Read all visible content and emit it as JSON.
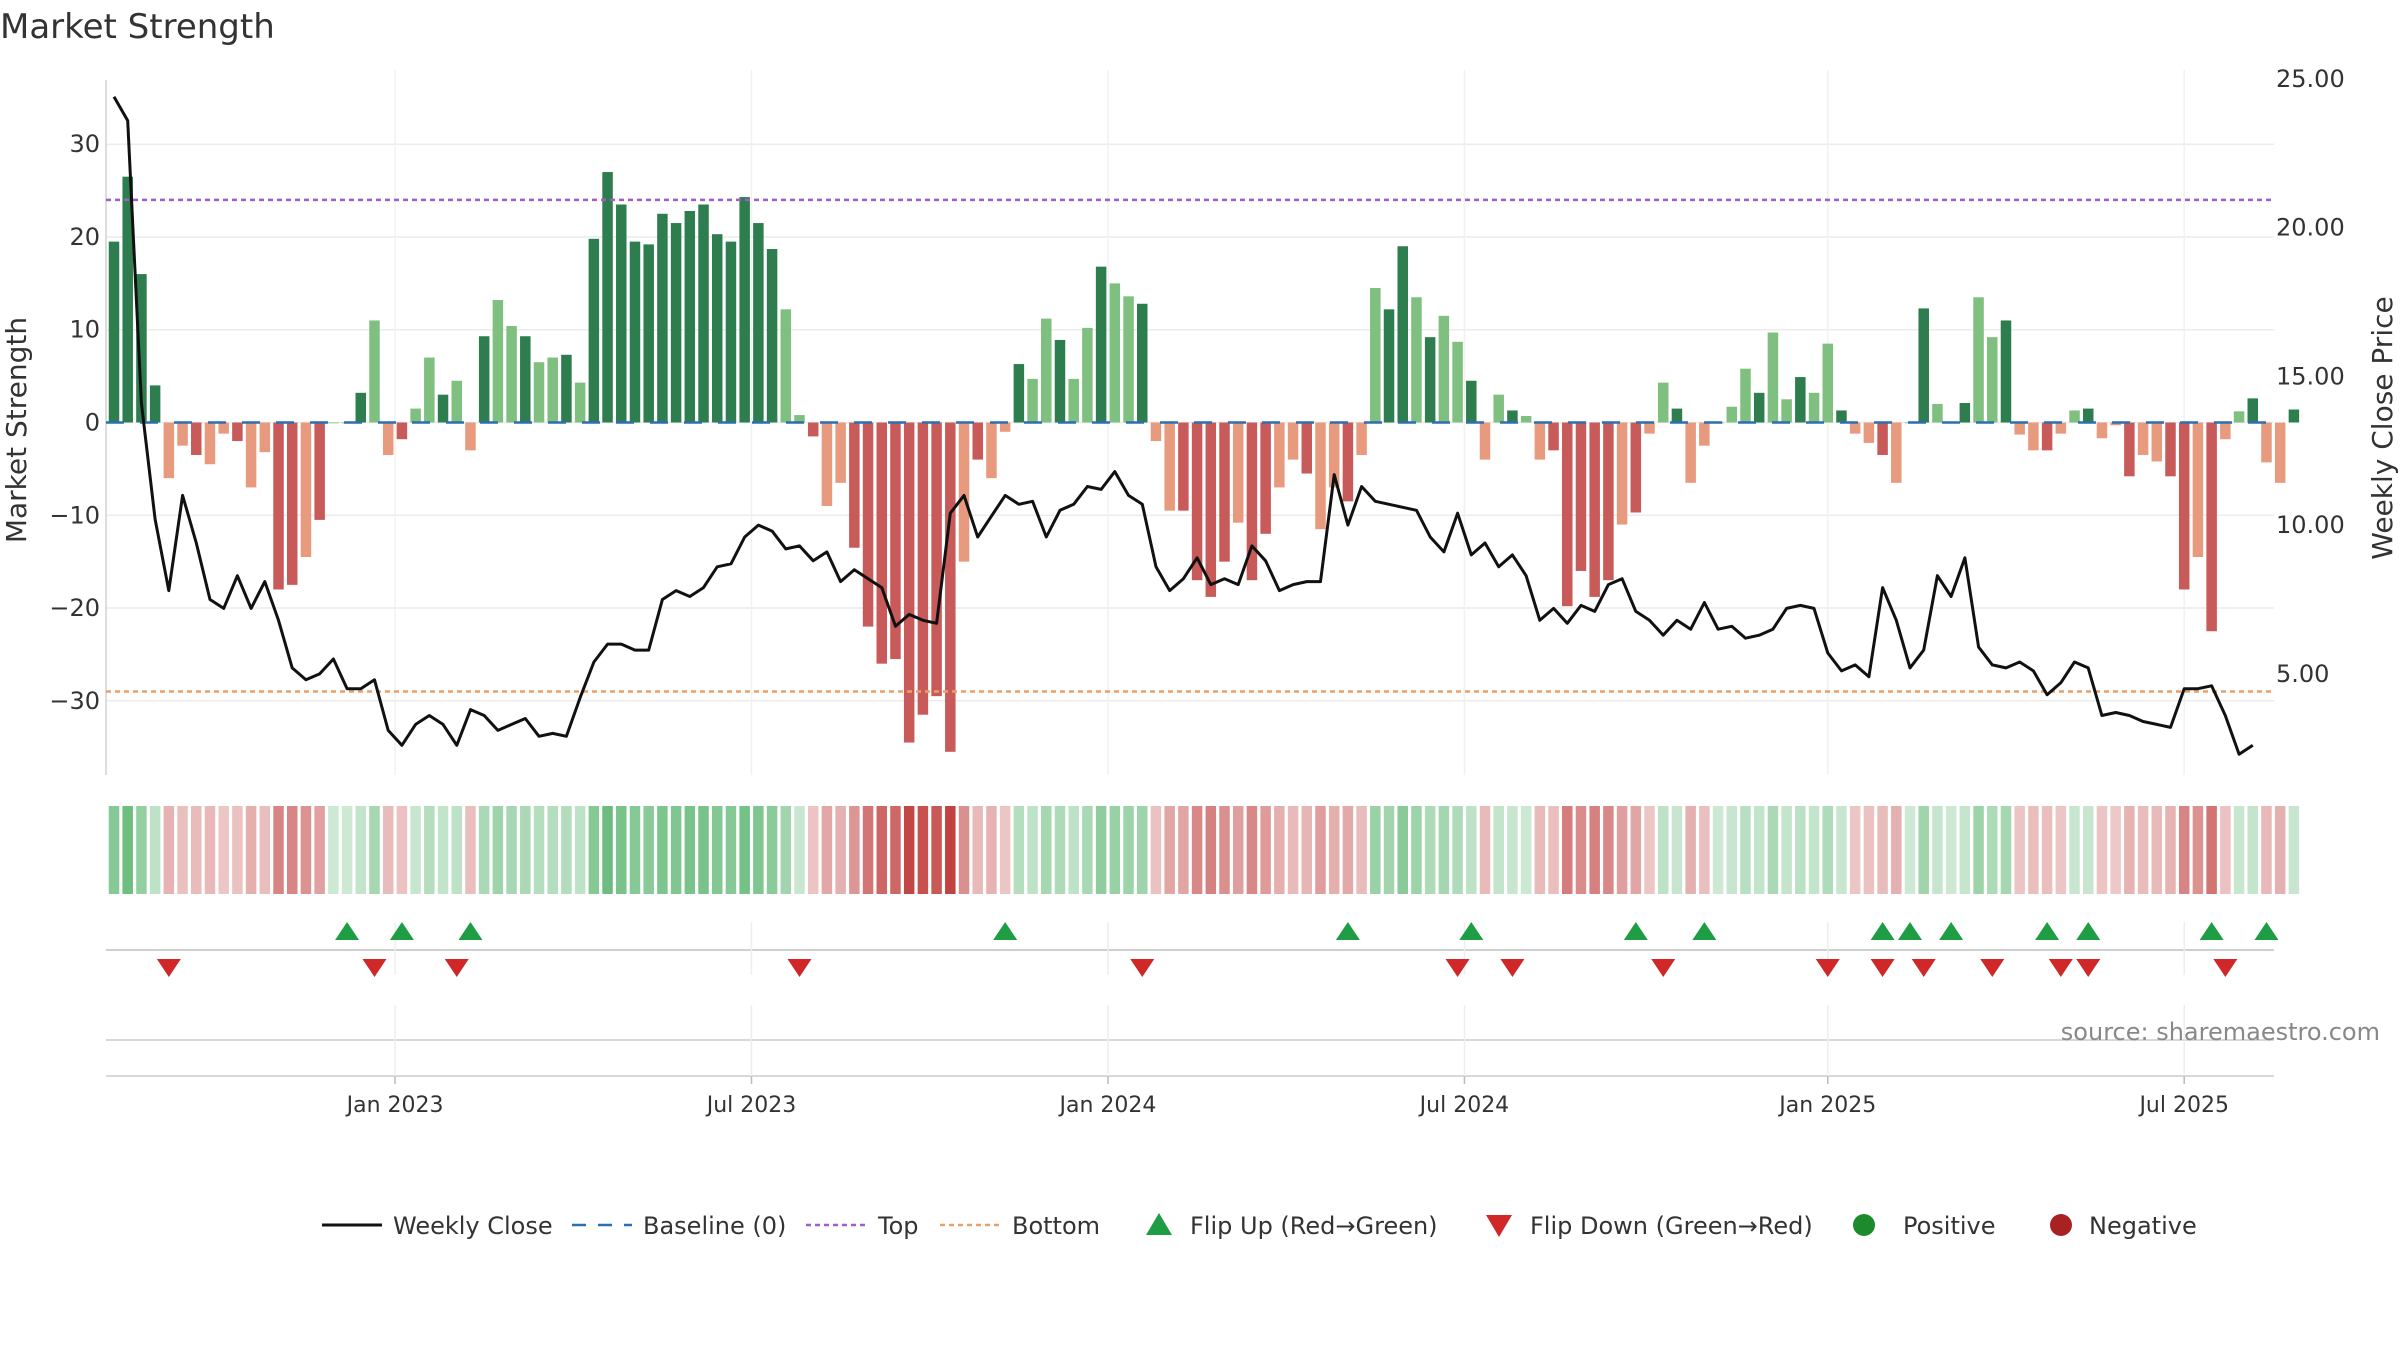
{
  "title": "Market Strength",
  "source": "source: sharemaestro.com",
  "colors": {
    "pos_strong": "#2e7d4f",
    "pos_weak": "#7fbf7f",
    "neg_strong": "#c85a5a",
    "neg_weak": "#e89a7e",
    "top_line": "#a05ec6",
    "bottom_line": "#e8a06a",
    "baseline": "#2c6fb0",
    "close_line": "#111111",
    "flip_up": "#1f9d45",
    "flip_down": "#d02828",
    "positive_dot": "#1e8a2e",
    "negative_dot": "#a82222"
  },
  "chart_data": {
    "type": "bar",
    "ylabel": "Market Strength",
    "y2label": "Weekly Close Price",
    "ylim": [
      -38,
      38
    ],
    "y2lim": [
      1.6,
      25.3
    ],
    "yticks": [
      "30",
      "20",
      "10",
      "0",
      "−10",
      "−20",
      "−30"
    ],
    "yticks_values": [
      30,
      20,
      10,
      0,
      -10,
      -20,
      -30
    ],
    "y2ticks": [
      "25.00",
      "20.00",
      "15.00",
      "10.00",
      "5.00"
    ],
    "y2ticks_values": [
      25,
      20,
      15,
      10,
      5
    ],
    "top_level": 24,
    "bottom_level": -29,
    "x_start": "2022-08-12",
    "x_step_days": 7,
    "xticks": [
      "Jan 2023",
      "Jul 2023",
      "Jan 2024",
      "Jul 2024",
      "Jan 2025",
      "Jul 2025"
    ],
    "xticks_weeks": [
      20.5,
      46.5,
      72.5,
      98.5,
      125,
      151
    ],
    "strength": [
      19.5,
      26.5,
      16,
      4,
      -6,
      -2.5,
      -3.5,
      -4.5,
      -1.2,
      -2,
      -7,
      -3.2,
      -18,
      -17.5,
      -14.5,
      -10.5,
      0,
      0,
      3.2,
      11,
      -3.5,
      -1.8,
      1.5,
      7,
      3,
      4.5,
      -3,
      9.3,
      13.2,
      10.4,
      9.3,
      6.5,
      7,
      7.3,
      4.3,
      19.8,
      27,
      23.5,
      19.5,
      19.2,
      22.5,
      21.5,
      22.8,
      23.5,
      20.3,
      19.5,
      24.3,
      21.5,
      18.7,
      12.2,
      0.8,
      -1.5,
      -9,
      -6.5,
      -13.5,
      -22,
      -26,
      -25.5,
      -34.5,
      -31.5,
      -29.5,
      -35.5,
      -15,
      -4,
      -6,
      -1,
      6.3,
      4.7,
      11.2,
      8.9,
      4.7,
      10.2,
      16.8,
      15,
      13.6,
      12.8,
      -2,
      -9.5,
      -9.5,
      -17,
      -18.8,
      -15,
      -10.8,
      -17,
      -12,
      -7,
      -4,
      -5.5,
      -11.5,
      -7,
      -8.5,
      -3.5,
      14.5,
      12.2,
      19,
      13.5,
      9.2,
      11.5,
      8.7,
      4.5,
      -4,
      3,
      1.3,
      0.7,
      -4,
      -3,
      -19.8,
      -16,
      -18.8,
      -17,
      -11,
      -9.7,
      -1.2,
      4.3,
      1.5,
      -6.5,
      -2.5,
      0,
      1.7,
      5.8,
      3.2,
      9.7,
      2.5,
      4.9,
      3.2,
      8.5,
      1.3,
      -1.2,
      -2.2,
      -3.5,
      -6.5,
      0,
      12.3,
      2,
      0,
      2.1,
      13.5,
      9.2,
      11,
      -1.3,
      -3,
      -3,
      -1.2,
      1.3,
      1.5,
      -1.7,
      -0.3,
      -5.8,
      -3.5,
      -4.2,
      -5.8,
      -18,
      -14.5,
      -22.5,
      -1.8,
      1.2,
      2.6,
      -4.3,
      -6.5,
      1.4
    ],
    "close": [
      24.4,
      23.6,
      14.1,
      10.2,
      7.8,
      11.0,
      9.4,
      7.5,
      7.2,
      8.3,
      7.2,
      8.1,
      6.8,
      5.2,
      4.8,
      5.0,
      5.5,
      4.5,
      4.5,
      4.8,
      3.1,
      2.6,
      3.3,
      3.6,
      3.3,
      2.6,
      3.8,
      3.6,
      3.1,
      3.3,
      3.5,
      2.9,
      3.0,
      2.9,
      4.2,
      5.4,
      6.0,
      6.0,
      5.8,
      5.8,
      7.5,
      7.8,
      7.6,
      7.9,
      8.6,
      8.7,
      9.6,
      10.0,
      9.8,
      9.2,
      9.3,
      8.8,
      9.1,
      8.1,
      8.5,
      8.2,
      7.9,
      6.6,
      7.0,
      6.8,
      6.7,
      10.4,
      11.0,
      9.6,
      10.3,
      11.0,
      10.7,
      10.8,
      9.6,
      10.5,
      10.7,
      11.3,
      11.2,
      11.8,
      11.0,
      10.7,
      8.6,
      7.8,
      8.2,
      8.9,
      8.0,
      8.2,
      8.0,
      9.3,
      8.8,
      7.8,
      8.0,
      8.1,
      8.1,
      11.7,
      10.0,
      11.3,
      10.8,
      10.7,
      10.6,
      10.5,
      9.6,
      9.1,
      10.4,
      9.0,
      9.4,
      8.6,
      9.0,
      8.3,
      6.8,
      7.2,
      6.7,
      7.3,
      7.1,
      8.0,
      8.2,
      7.1,
      6.8,
      6.3,
      6.8,
      6.5,
      7.4,
      6.5,
      6.6,
      6.2,
      6.3,
      6.5,
      7.2,
      7.3,
      7.2,
      5.7,
      5.1,
      5.3,
      4.9,
      7.9,
      6.8,
      5.2,
      5.8,
      8.3,
      7.6,
      8.9,
      5.9,
      5.3,
      5.2,
      5.4,
      5.1,
      4.3,
      4.7,
      5.4,
      5.2,
      3.6,
      3.7,
      3.6,
      3.4,
      3.3,
      3.2,
      4.5,
      4.5,
      4.6,
      3.6,
      2.3,
      2.6
    ],
    "flip_up_weeks": [
      17,
      21,
      26,
      65,
      90,
      99,
      111,
      116,
      129,
      131,
      134,
      141,
      144,
      153,
      157
    ],
    "flip_down_weeks": [
      4,
      19,
      25,
      50,
      75,
      98,
      102,
      113,
      125,
      129,
      132,
      137,
      142,
      144,
      154
    ],
    "legend": [
      {
        "label": "Weekly Close",
        "kind": "line"
      },
      {
        "label": "Baseline (0)",
        "kind": "dash"
      },
      {
        "label": "Top",
        "kind": "dot_top"
      },
      {
        "label": "Bottom",
        "kind": "dot_bottom"
      },
      {
        "label": "Flip Up (Red→Green)",
        "kind": "tri_up"
      },
      {
        "label": "Flip Down (Green→Red)",
        "kind": "tri_down"
      },
      {
        "label": "Positive",
        "kind": "dot_pos"
      },
      {
        "label": "Negative",
        "kind": "dot_neg"
      }
    ]
  }
}
